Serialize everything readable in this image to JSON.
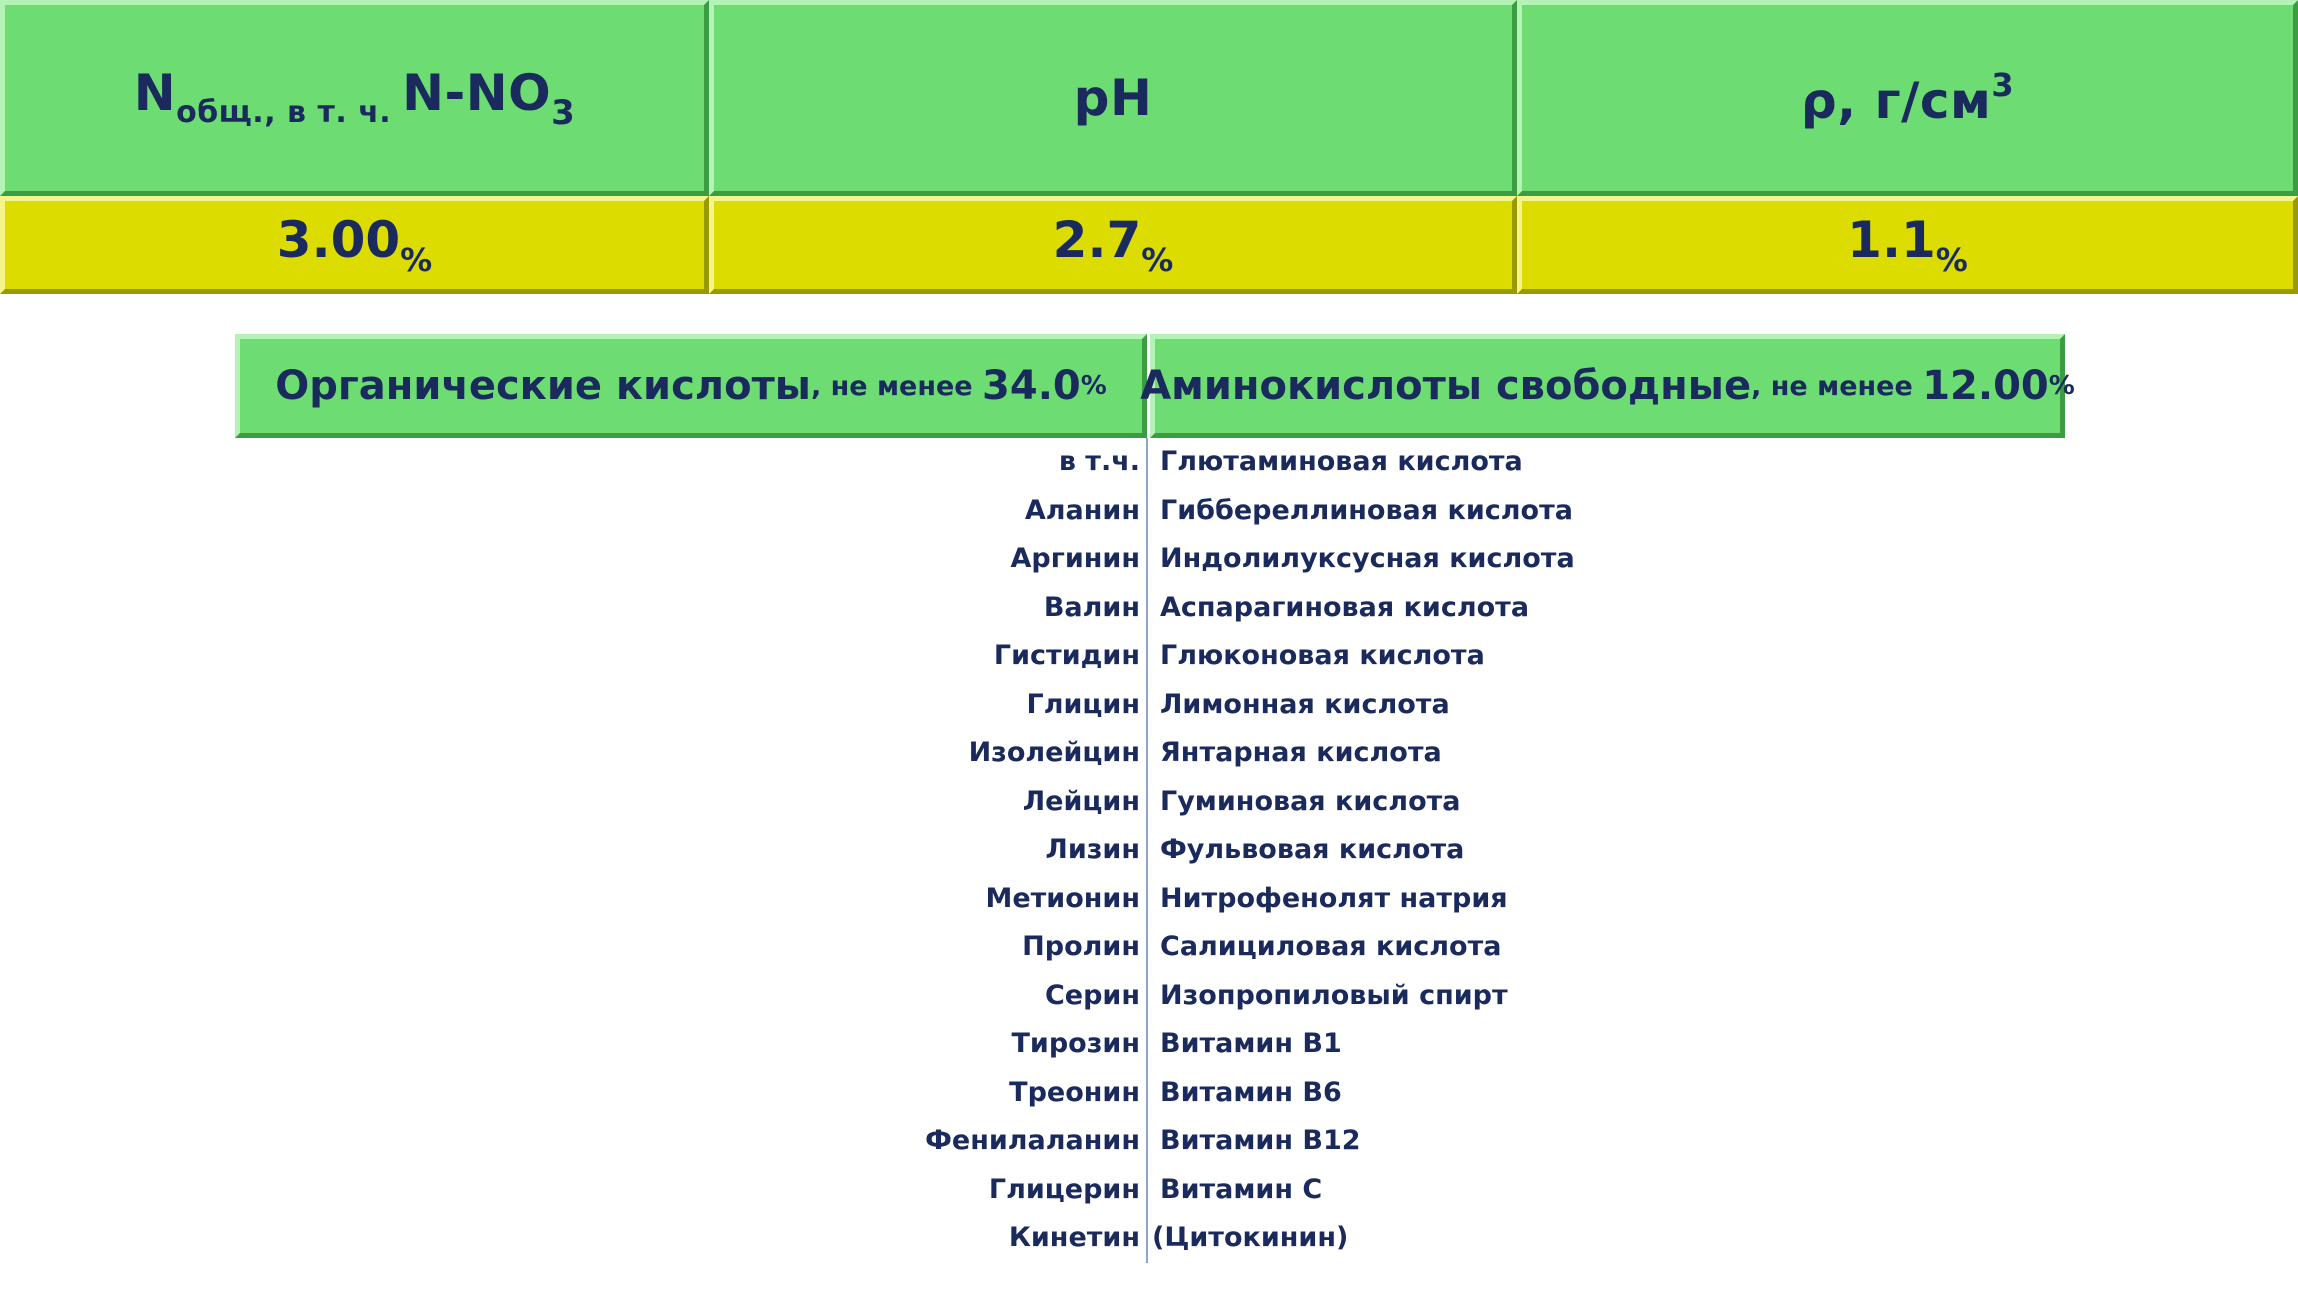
{
  "top_table": {
    "headers": {
      "nitrogen": {
        "main": "N",
        "sub_general": "общ.",
        "connector": ", в т. ч. ",
        "nitrate_main": "N-NO",
        "nitrate_sub": "3"
      },
      "ph": "pH",
      "density": {
        "main": "ρ, г/см",
        "sup": "3"
      }
    },
    "values": {
      "nitrogen": "3.00",
      "ph": "2.7",
      "density": "1.1",
      "unit": "%"
    }
  },
  "sections": {
    "organic_acids": {
      "title": "Органические кислоты",
      "note": ", не менее ",
      "value": "34.0",
      "unit": "%"
    },
    "amino_acids": {
      "title": "Аминокислоты свободные",
      "note": ", не менее ",
      "value": "12.00",
      "unit": "%"
    }
  },
  "left_list": [
    "в т.ч.",
    "Аланин",
    "Аргинин",
    "Валин",
    "Гистидин",
    "Глицин",
    "Изолейцин",
    "Лейцин",
    "Лизин",
    "Метионин",
    "Пролин",
    "Серин",
    "Тирозин",
    "Треонин",
    "Фенилаланин",
    "Глицерин",
    "Кинетин"
  ],
  "right_list": [
    "Глютаминовая кислота",
    "Гиббереллиновая кислота",
    "Индолилуксусная кислота",
    "Аспарагиновая кислота",
    "Глюконовая кислота",
    "Лимонная кислота",
    "Янтарная кислота",
    "Гуминовая кислота",
    "Фульвовая кислота",
    "Нитрофенолят натрия",
    "Салициловая кислота",
    "Изопропиловый спирт",
    "Витамин В1",
    "Витамин В6",
    "Витамин В12",
    "Витамин С",
    "(Цитокинин)"
  ],
  "colors": {
    "header_green": "#6ddc72",
    "value_yellow": "#dcdc00",
    "text_navy": "#1a2a5c",
    "divider": "#8fa6c8"
  }
}
